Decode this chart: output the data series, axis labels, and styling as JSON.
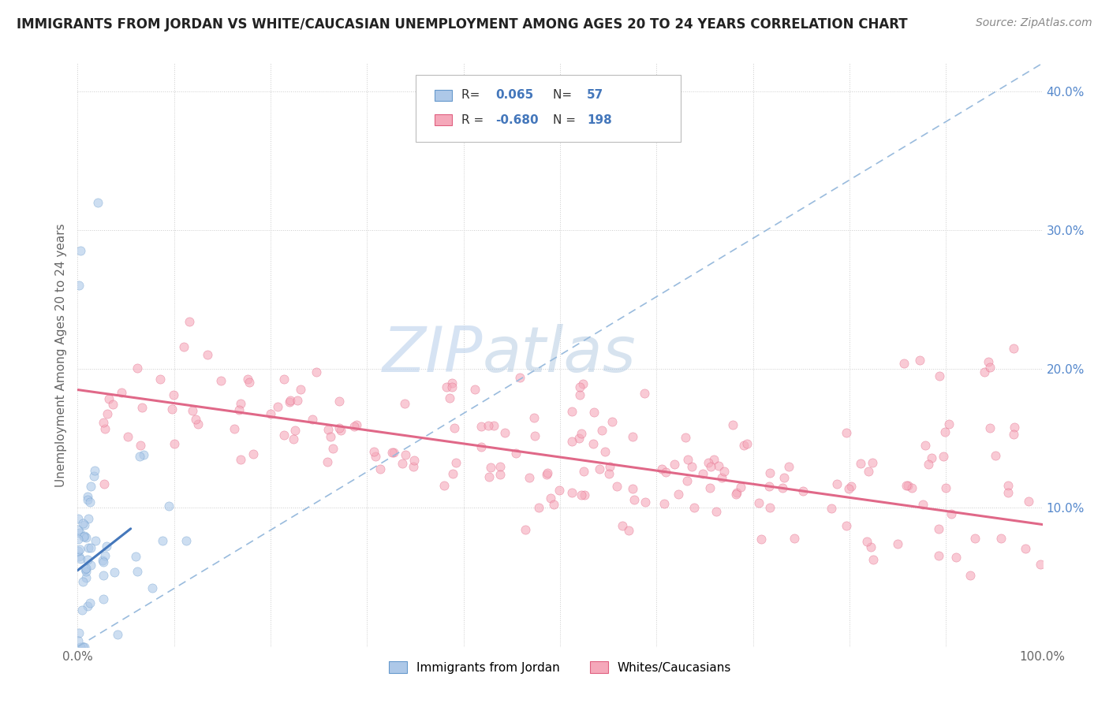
{
  "title": "IMMIGRANTS FROM JORDAN VS WHITE/CAUCASIAN UNEMPLOYMENT AMONG AGES 20 TO 24 YEARS CORRELATION CHART",
  "source": "Source: ZipAtlas.com",
  "ylabel": "Unemployment Among Ages 20 to 24 years",
  "xlim": [
    0,
    1.0
  ],
  "ylim": [
    0,
    0.42
  ],
  "xticks": [
    0.0,
    0.1,
    0.2,
    0.3,
    0.4,
    0.5,
    0.6,
    0.7,
    0.8,
    0.9,
    1.0
  ],
  "yticks": [
    0.0,
    0.1,
    0.2,
    0.3,
    0.4
  ],
  "R_blue": 0.065,
  "N_blue": 57,
  "R_pink": -0.68,
  "N_pink": 198,
  "legend_label_blue": "Immigrants from Jordan",
  "legend_label_pink": "Whites/Caucasians",
  "title_fontsize": 12,
  "source_fontsize": 10,
  "watermark_zip": "ZIP",
  "watermark_atlas": "atlas",
  "dot_alpha": 0.6,
  "blue_fill": "#adc8e8",
  "pink_fill": "#f5a8ba",
  "blue_edge": "#6699cc",
  "pink_edge": "#e06080",
  "trend_pink_color": "#e06888",
  "trend_blue_color": "#4477bb",
  "trend_dashed_color": "#99bbdd",
  "grid_color": "#cccccc",
  "background_color": "#ffffff",
  "tick_color_y": "#5588cc",
  "tick_color_x": "#666666",
  "seed": 12345,
  "pink_trend_x0": 0.0,
  "pink_trend_y0": 0.185,
  "pink_trend_x1": 1.0,
  "pink_trend_y1": 0.088,
  "blue_trend_x0": 0.0,
  "blue_trend_y0": 0.055,
  "blue_trend_x1": 0.055,
  "blue_trend_y1": 0.085,
  "dashed_trend_x0": 0.0,
  "dashed_trend_y0": 0.0,
  "dashed_trend_x1": 1.0,
  "dashed_trend_y1": 0.42
}
